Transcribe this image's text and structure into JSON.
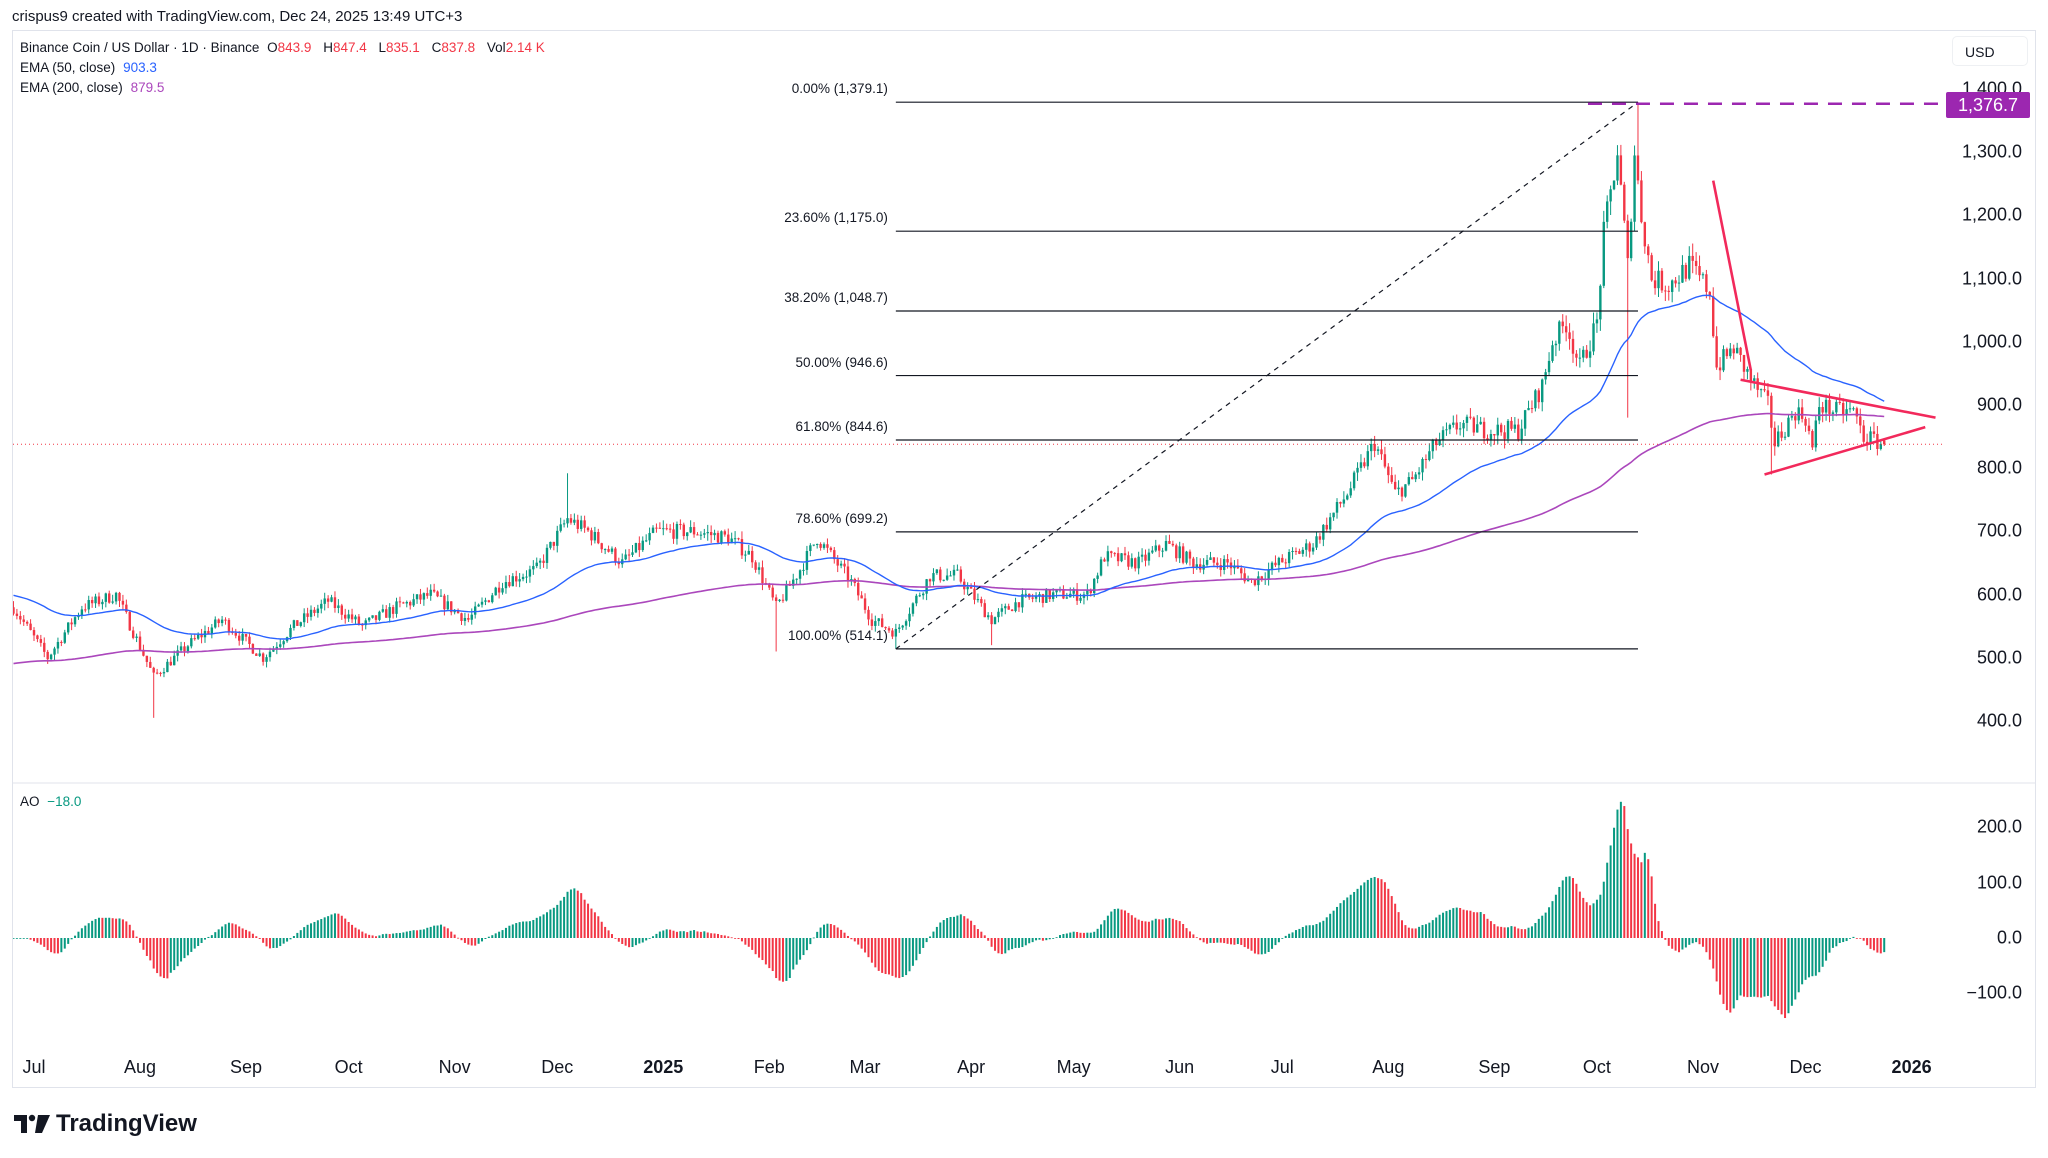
{
  "credit": "crispus9 created with TradingView.com, Dec 24, 2025 13:49 UTC+3",
  "legend": {
    "symbol": "Binance Coin / US Dollar · 1D · Binance",
    "o_label": "O",
    "o": "843.9",
    "h_label": "H",
    "h": "847.4",
    "l_label": "L",
    "l": "835.1",
    "c_label": "C",
    "c": "837.8",
    "vol_label": "Vol",
    "vol": "2.14 K",
    "ema50_label": "EMA (50, close)",
    "ema50": "903.3",
    "ema200_label": "EMA (200, close)",
    "ema200": "879.5",
    "ao_label": "AO",
    "ao": "−18.0"
  },
  "currency": "USD",
  "last_price_label": "1,376.7",
  "brand": "TradingView",
  "colors": {
    "up": "#089981",
    "down": "#f23645",
    "ema50": "#2962ff",
    "ema200": "#ab47bc",
    "trendline": "#f2295b",
    "marker": "#9c27b0"
  },
  "chart_data": {
    "type": "candlestick",
    "title": "Binance Coin / US Dollar · 1D · Binance",
    "ylim": [
      330,
      1460
    ],
    "y_ticks": [
      "1,400.0",
      "1,300.0",
      "1,200.0",
      "1,100.0",
      "1,000.0",
      "900.0",
      "800.0",
      "700.0",
      "600.0",
      "500.0",
      "400.0"
    ],
    "y_tick_values": [
      1400,
      1300,
      1200,
      1100,
      1000,
      900,
      800,
      700,
      600,
      500,
      400
    ],
    "x_ticks": [
      {
        "label": "Jul",
        "date": "2024-07-01"
      },
      {
        "label": "Aug",
        "date": "2024-08-01"
      },
      {
        "label": "Sep",
        "date": "2024-09-01"
      },
      {
        "label": "Oct",
        "date": "2024-10-01"
      },
      {
        "label": "Nov",
        "date": "2024-11-01"
      },
      {
        "label": "Dec",
        "date": "2024-12-01"
      },
      {
        "label": "2025",
        "date": "2025-01-01",
        "bold": true
      },
      {
        "label": "Feb",
        "date": "2025-02-01"
      },
      {
        "label": "Mar",
        "date": "2025-03-01"
      },
      {
        "label": "Apr",
        "date": "2025-04-01"
      },
      {
        "label": "May",
        "date": "2025-05-01"
      },
      {
        "label": "Jun",
        "date": "2025-06-01"
      },
      {
        "label": "Jul",
        "date": "2025-07-01"
      },
      {
        "label": "Aug",
        "date": "2025-08-01"
      },
      {
        "label": "Sep",
        "date": "2025-09-01"
      },
      {
        "label": "Oct",
        "date": "2025-10-01"
      },
      {
        "label": "Nov",
        "date": "2025-11-01"
      },
      {
        "label": "Dec",
        "date": "2025-12-01"
      },
      {
        "label": "2026",
        "date": "2026-01-01",
        "bold": true
      }
    ],
    "close_keypoints": [
      [
        "2024-06-25",
        580
      ],
      [
        "2024-07-05",
        500
      ],
      [
        "2024-07-15",
        580
      ],
      [
        "2024-07-25",
        600
      ],
      [
        "2024-08-05",
        470
      ],
      [
        "2024-08-15",
        520
      ],
      [
        "2024-08-25",
        560
      ],
      [
        "2024-09-06",
        500
      ],
      [
        "2024-09-15",
        550
      ],
      [
        "2024-09-25",
        590
      ],
      [
        "2024-10-05",
        550
      ],
      [
        "2024-10-15",
        580
      ],
      [
        "2024-10-25",
        600
      ],
      [
        "2024-11-05",
        560
      ],
      [
        "2024-11-15",
        620
      ],
      [
        "2024-11-25",
        640
      ],
      [
        "2024-12-04",
        720
      ],
      [
        "2024-12-10",
        700
      ],
      [
        "2024-12-20",
        650
      ],
      [
        "2024-12-30",
        700
      ],
      [
        "2025-01-10",
        700
      ],
      [
        "2025-01-20",
        690
      ],
      [
        "2025-01-27",
        660
      ],
      [
        "2025-02-03",
        580
      ],
      [
        "2025-02-10",
        640
      ],
      [
        "2025-02-15",
        690
      ],
      [
        "2025-02-25",
        620
      ],
      [
        "2025-03-03",
        560
      ],
      [
        "2025-03-10",
        540
      ],
      [
        "2025-03-20",
        630
      ],
      [
        "2025-03-28",
        630
      ],
      [
        "2025-04-07",
        560
      ],
      [
        "2025-04-15",
        590
      ],
      [
        "2025-04-25",
        600
      ],
      [
        "2025-05-05",
        600
      ],
      [
        "2025-05-10",
        660
      ],
      [
        "2025-05-20",
        650
      ],
      [
        "2025-05-28",
        680
      ],
      [
        "2025-06-05",
        650
      ],
      [
        "2025-06-15",
        650
      ],
      [
        "2025-06-22",
        620
      ],
      [
        "2025-06-30",
        650
      ],
      [
        "2025-07-10",
        680
      ],
      [
        "2025-07-20",
        760
      ],
      [
        "2025-07-28",
        840
      ],
      [
        "2025-08-03",
        760
      ],
      [
        "2025-08-08",
        780
      ],
      [
        "2025-08-15",
        840
      ],
      [
        "2025-08-22",
        870
      ],
      [
        "2025-08-30",
        860
      ],
      [
        "2025-09-08",
        860
      ],
      [
        "2025-09-15",
        930
      ],
      [
        "2025-09-18",
        1000
      ],
      [
        "2025-09-22",
        1030
      ],
      [
        "2025-09-26",
        960
      ],
      [
        "2025-10-01",
        1030
      ],
      [
        "2025-10-03",
        1170
      ],
      [
        "2025-10-07",
        1300
      ],
      [
        "2025-10-10",
        1120
      ],
      [
        "2025-10-12",
        1300
      ],
      [
        "2025-10-14",
        1200
      ],
      [
        "2025-10-17",
        1100
      ],
      [
        "2025-10-22",
        1090
      ],
      [
        "2025-10-28",
        1120
      ],
      [
        "2025-11-03",
        1080
      ],
      [
        "2025-11-05",
        960
      ],
      [
        "2025-11-10",
        990
      ],
      [
        "2025-11-15",
        940
      ],
      [
        "2025-11-20",
        900
      ],
      [
        "2025-11-22",
        840
      ],
      [
        "2025-11-28",
        890
      ],
      [
        "2025-12-01",
        880
      ],
      [
        "2025-12-03",
        830
      ],
      [
        "2025-12-05",
        900
      ],
      [
        "2025-12-10",
        890
      ],
      [
        "2025-12-15",
        890
      ],
      [
        "2025-12-18",
        850
      ],
      [
        "2025-12-24",
        837.8
      ]
    ],
    "last_candle": {
      "open": 843.9,
      "high": 847.4,
      "low": 835.1,
      "close": 837.8,
      "volume": "2.14 K"
    },
    "ema": [
      {
        "name": "EMA (50, close)",
        "last": 903.3
      },
      {
        "name": "EMA (200, close)",
        "last": 879.5
      }
    ],
    "fibonacci": {
      "from": {
        "date": "2025-03-10",
        "price": 514.1
      },
      "to": {
        "date": "2025-10-13",
        "price": 1379.1
      },
      "levels": [
        {
          "label": "0.00% (1,379.1)",
          "price": 1379.1
        },
        {
          "label": "23.60% (1,175.0)",
          "price": 1175.0
        },
        {
          "label": "38.20% (1,048.7)",
          "price": 1048.7
        },
        {
          "label": "50.00% (946.6)",
          "price": 946.6
        },
        {
          "label": "61.80% (844.6)",
          "price": 844.6
        },
        {
          "label": "78.60% (699.2)",
          "price": 699.2
        },
        {
          "label": "100.00% (514.1)",
          "price": 514.1
        }
      ]
    },
    "horizontal_line": {
      "price": 1376.7,
      "style": "dashed"
    },
    "trendlines": [
      {
        "from": {
          "date": "2025-11-04",
          "price": 1255
        },
        "to": {
          "date": "2025-11-15",
          "price": 955
        }
      },
      {
        "from": {
          "date": "2025-11-12",
          "price": 940
        },
        "to": {
          "date": "2026-01-08",
          "price": 880
        }
      },
      {
        "from": {
          "date": "2025-11-19",
          "price": 790
        },
        "to": {
          "date": "2026-01-05",
          "price": 865
        }
      }
    ],
    "oscillator": {
      "name": "AO",
      "last": -18.0,
      "y_ticks": [
        "200.0",
        "100.0",
        "0.0",
        "−100.0"
      ],
      "y_tick_values": [
        200,
        100,
        0,
        -100
      ],
      "ylim": [
        -150,
        260
      ]
    },
    "grid": false,
    "legend": "top-left"
  }
}
